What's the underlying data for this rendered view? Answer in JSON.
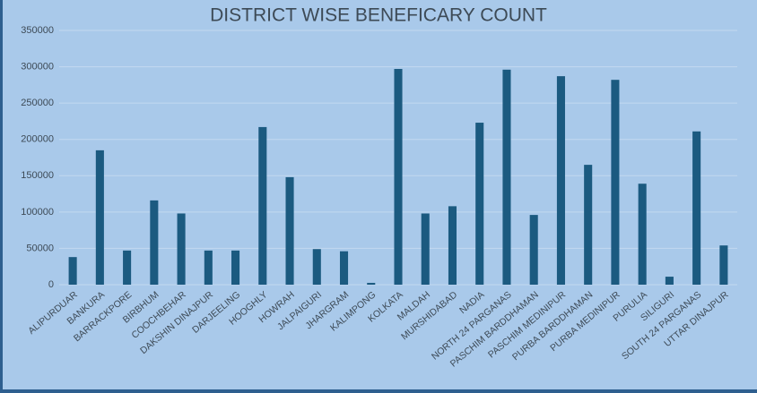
{
  "chart_data": {
    "type": "bar",
    "title": "DISTRICT WISE BENEFICARY COUNT",
    "categories": [
      "ALIPURDUAR",
      "BANKURA",
      "BARRACKPORE",
      "BIRBHUM",
      "COOCHBEHAR",
      "DAKSHIN DINAJPUR",
      "DARJEELING",
      "HOOGHLY",
      "HOWRAH",
      "JALPAIGURI",
      "JHARGRAM",
      "KALIMPONG",
      "KOLKATA",
      "MALDAH",
      "MURSHIDABAD",
      "NADIA",
      "NORTH 24 PARGANAS",
      "PASCHIM BARDDHAMAN",
      "PASCHIM MEDINIPUR",
      "PURBA BARDDHAMAN",
      "PURBA MEDINIPUR",
      "PURULIA",
      "SILIGURI",
      "SOUTH 24 PARGANAS",
      "UTTAR DINAJPUR"
    ],
    "values": [
      38000,
      185000,
      47000,
      116000,
      98000,
      47000,
      47000,
      217000,
      148000,
      49000,
      46000,
      2500,
      297000,
      98000,
      108000,
      223000,
      296000,
      96000,
      287000,
      165000,
      282000,
      139000,
      11000,
      211000,
      54000
    ],
    "color": "#1b5a80",
    "ylim": [
      0,
      350000
    ],
    "yticks": [
      0,
      50000,
      100000,
      150000,
      200000,
      250000,
      300000,
      350000
    ],
    "grid": true
  }
}
